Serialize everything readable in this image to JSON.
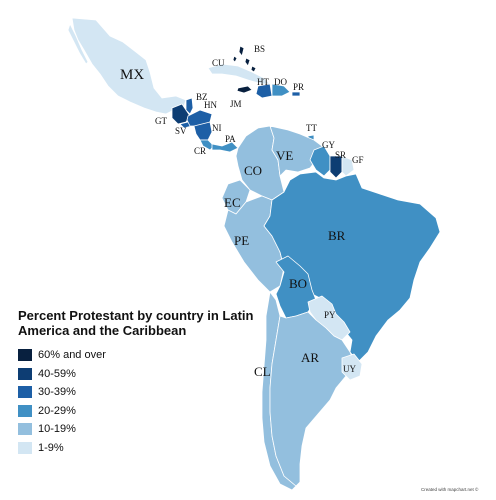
{
  "title": "Percent Protestant by country in Latin America and the Caribbean",
  "credit": "Created with mapchart.net ©",
  "legend": [
    {
      "label": "60% and over",
      "color": "#08203f"
    },
    {
      "label": "40-59%",
      "color": "#0d3d73"
    },
    {
      "label": "30-39%",
      "color": "#1d5fa6"
    },
    {
      "label": "20-29%",
      "color": "#4090c4"
    },
    {
      "label": "10-19%",
      "color": "#93bfde"
    },
    {
      "label": "1-9%",
      "color": "#d3e6f3"
    }
  ],
  "countries": [
    {
      "code": "MX",
      "bin": "1-9%"
    },
    {
      "code": "GT",
      "bin": "40-59%"
    },
    {
      "code": "BZ",
      "bin": "30-39%"
    },
    {
      "code": "SV",
      "bin": "30-39%"
    },
    {
      "code": "HN",
      "bin": "30-39%"
    },
    {
      "code": "NI",
      "bin": "30-39%"
    },
    {
      "code": "CR",
      "bin": "20-29%"
    },
    {
      "code": "PA",
      "bin": "20-29%"
    },
    {
      "code": "CU",
      "bin": "1-9%"
    },
    {
      "code": "BS",
      "bin": "60% and over"
    },
    {
      "code": "JM",
      "bin": "60% and over"
    },
    {
      "code": "HT",
      "bin": "30-39%"
    },
    {
      "code": "DO",
      "bin": "20-29%"
    },
    {
      "code": "PR",
      "bin": "30-39%"
    },
    {
      "code": "TT",
      "bin": "20-29%"
    },
    {
      "code": "CO",
      "bin": "10-19%"
    },
    {
      "code": "VE",
      "bin": "10-19%"
    },
    {
      "code": "GY",
      "bin": "20-29%"
    },
    {
      "code": "SR",
      "bin": "40-59%"
    },
    {
      "code": "GF",
      "bin": "1-9%"
    },
    {
      "code": "EC",
      "bin": "10-19%"
    },
    {
      "code": "PE",
      "bin": "10-19%"
    },
    {
      "code": "BR",
      "bin": "20-29%"
    },
    {
      "code": "BO",
      "bin": "20-29%"
    },
    {
      "code": "PY",
      "bin": "1-9%"
    },
    {
      "code": "CL",
      "bin": "10-19%"
    },
    {
      "code": "AR",
      "bin": "10-19%"
    },
    {
      "code": "UY",
      "bin": "1-9%"
    }
  ]
}
